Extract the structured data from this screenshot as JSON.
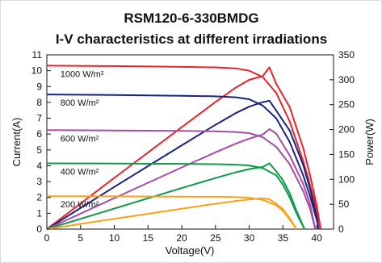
{
  "chart_data": {
    "type": "line",
    "title": "RSM120-6-330BMDG",
    "subtitle": "I-V characteristics at different irradiations",
    "xlabel": "Voltage(V)",
    "ylabel": "Current(A)",
    "y2label": "Power(W)",
    "xlim": [
      0,
      42.5
    ],
    "ylim": [
      0,
      11
    ],
    "y2lim": [
      0,
      350
    ],
    "xticks": [
      "0",
      "5",
      "10",
      "15",
      "20",
      "25",
      "30",
      "35",
      "40"
    ],
    "yticks": [
      "0",
      "1",
      "2",
      "3",
      "4",
      "5",
      "6",
      "7",
      "8",
      "9",
      "10",
      "11"
    ],
    "y2ticks": [
      "0",
      "50",
      "100",
      "150",
      "200",
      "250",
      "300",
      "350"
    ],
    "grid": false,
    "series": [
      {
        "name": "1000 W/m²",
        "color": "#e8232a",
        "iv": [
          [
            0,
            10.32
          ],
          [
            10,
            10.29
          ],
          [
            20,
            10.24
          ],
          [
            25,
            10.21
          ],
          [
            28,
            10.15
          ],
          [
            30,
            10.0
          ],
          [
            32,
            9.6
          ],
          [
            34,
            8.6
          ],
          [
            36,
            6.8
          ],
          [
            38,
            4.3
          ],
          [
            39,
            2.8
          ],
          [
            40,
            1.2
          ],
          [
            40.6,
            0
          ]
        ],
        "pv": [
          [
            0,
            0
          ],
          [
            10,
            102.9
          ],
          [
            20,
            204.8
          ],
          [
            25,
            255.3
          ],
          [
            28,
            284.2
          ],
          [
            30,
            300
          ],
          [
            32,
            307.2
          ],
          [
            33,
            325
          ],
          [
            34,
            292
          ],
          [
            36,
            245
          ],
          [
            38,
            163
          ],
          [
            39,
            109
          ],
          [
            40,
            48
          ],
          [
            40.6,
            0
          ]
        ]
      },
      {
        "name": "800 W/m²",
        "color": "#1a237e",
        "iv": [
          [
            0,
            8.5
          ],
          [
            10,
            8.47
          ],
          [
            20,
            8.42
          ],
          [
            25,
            8.38
          ],
          [
            28,
            8.32
          ],
          [
            30,
            8.2
          ],
          [
            32,
            7.8
          ],
          [
            34,
            7.0
          ],
          [
            36,
            5.5
          ],
          [
            38,
            3.4
          ],
          [
            39,
            2.1
          ],
          [
            40,
            0.6
          ],
          [
            40.3,
            0
          ]
        ],
        "pv": [
          [
            0,
            0
          ],
          [
            10,
            84.7
          ],
          [
            20,
            168.4
          ],
          [
            25,
            209.5
          ],
          [
            28,
            233
          ],
          [
            30,
            246
          ],
          [
            32,
            255
          ],
          [
            33,
            258
          ],
          [
            34,
            238
          ],
          [
            36,
            198
          ],
          [
            38,
            129
          ],
          [
            39,
            82
          ],
          [
            40,
            24
          ],
          [
            40.3,
            0
          ]
        ]
      },
      {
        "name": "600 W/m²",
        "color": "#a64ca6",
        "iv": [
          [
            0,
            6.25
          ],
          [
            10,
            6.23
          ],
          [
            20,
            6.2
          ],
          [
            25,
            6.17
          ],
          [
            28,
            6.13
          ],
          [
            30,
            6.06
          ],
          [
            32,
            5.8
          ],
          [
            34,
            5.2
          ],
          [
            36,
            4.1
          ],
          [
            38,
            2.4
          ],
          [
            39,
            1.3
          ],
          [
            39.8,
            0
          ]
        ],
        "pv": [
          [
            0,
            0
          ],
          [
            10,
            62.3
          ],
          [
            20,
            124
          ],
          [
            25,
            154.3
          ],
          [
            28,
            171.6
          ],
          [
            30,
            181.8
          ],
          [
            32,
            190
          ],
          [
            33,
            201
          ],
          [
            34,
            192
          ],
          [
            36,
            148
          ],
          [
            38,
            91
          ],
          [
            39,
            51
          ],
          [
            39.8,
            0
          ]
        ]
      },
      {
        "name": "400 W/m²",
        "color": "#0e9a4a",
        "iv": [
          [
            0,
            4.15
          ],
          [
            10,
            4.14
          ],
          [
            20,
            4.12
          ],
          [
            25,
            4.1
          ],
          [
            28,
            4.07
          ],
          [
            30,
            4.02
          ],
          [
            32,
            3.85
          ],
          [
            34,
            3.4
          ],
          [
            35,
            2.8
          ],
          [
            36,
            2.0
          ],
          [
            37,
            1.0
          ],
          [
            38.2,
            0
          ]
        ],
        "pv": [
          [
            0,
            0
          ],
          [
            10,
            41.4
          ],
          [
            20,
            82.4
          ],
          [
            25,
            102.5
          ],
          [
            28,
            114
          ],
          [
            30,
            120.6
          ],
          [
            32,
            125
          ],
          [
            33,
            132
          ],
          [
            34,
            116
          ],
          [
            35,
            98
          ],
          [
            36,
            72
          ],
          [
            37,
            37
          ],
          [
            38.2,
            0
          ]
        ]
      },
      {
        "name": "200 W/m²",
        "color": "#f5a31a",
        "iv": [
          [
            0,
            2.08
          ],
          [
            10,
            2.07
          ],
          [
            20,
            2.05
          ],
          [
            25,
            2.04
          ],
          [
            28,
            2.02
          ],
          [
            30,
            1.98
          ],
          [
            32,
            1.85
          ],
          [
            34,
            1.5
          ],
          [
            35,
            1.15
          ],
          [
            36,
            0.6
          ],
          [
            37,
            0
          ]
        ],
        "pv": [
          [
            0,
            0
          ],
          [
            10,
            20.7
          ],
          [
            20,
            41
          ],
          [
            25,
            51
          ],
          [
            28,
            56.6
          ],
          [
            30,
            59.4
          ],
          [
            32,
            62
          ],
          [
            33,
            60
          ],
          [
            34,
            51
          ],
          [
            35,
            40
          ],
          [
            36,
            22
          ],
          [
            37,
            0
          ]
        ]
      }
    ]
  }
}
